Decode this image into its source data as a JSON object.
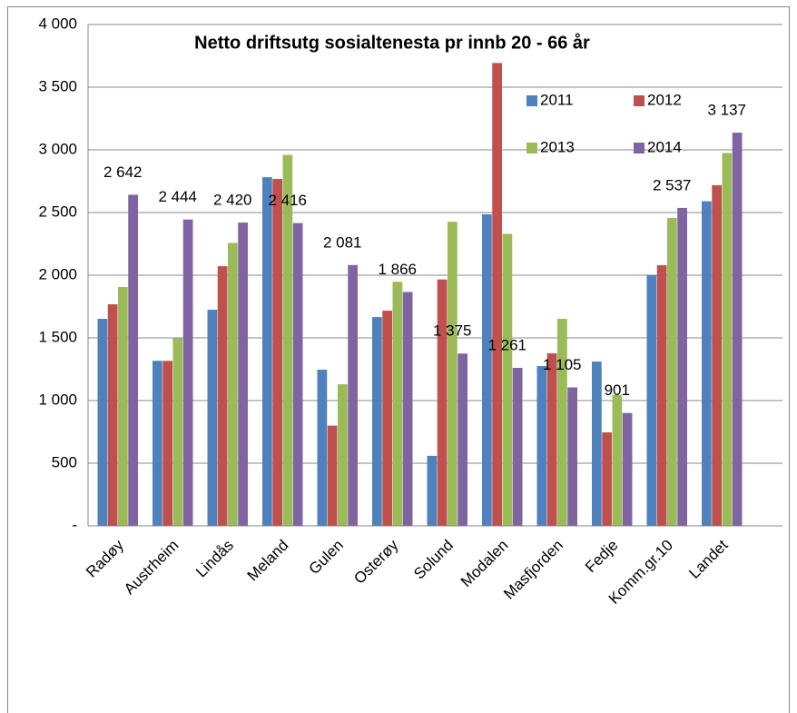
{
  "chart_data": {
    "type": "bar",
    "title": "Netto driftsutg sosialtenesta pr innb 20 - 66 år",
    "categories": [
      "Radøy",
      "Austrheim",
      "Lindås",
      "Meland",
      "Gulen",
      "Osterøy",
      "Solund",
      "Modalen",
      "Masfjorden",
      "Fedje",
      "Komm.gr.10",
      "Landet"
    ],
    "series": [
      {
        "name": "2011",
        "color": "#4f81bd",
        "values": [
          1652,
          1317,
          1725,
          2782,
          1246,
          1666,
          559,
          2486,
          1275,
          1311,
          2000,
          2590
        ]
      },
      {
        "name": "2012",
        "color": "#c0504d",
        "values": [
          1768,
          1317,
          2072,
          2768,
          800,
          1717,
          1966,
          3693,
          1377,
          746,
          2080,
          2718
        ]
      },
      {
        "name": "2013",
        "color": "#9bbb59",
        "values": [
          1906,
          1496,
          2258,
          2960,
          1130,
          1948,
          2427,
          2330,
          1652,
          1043,
          2457,
          2975
        ]
      },
      {
        "name": "2014",
        "color": "#8064a2",
        "values": [
          2642,
          2444,
          2420,
          2416,
          2081,
          1866,
          1375,
          1261,
          1105,
          901,
          2537,
          3137
        ],
        "value_labels": [
          "2 642",
          "2 444",
          "2 420",
          "2 416",
          "2 081",
          "1 866",
          "1 375",
          "1 261",
          "1 105",
          "901",
          "2 537",
          "3 137"
        ]
      }
    ],
    "ylim": [
      0,
      4000
    ],
    "yticks": [
      {
        "value": 0,
        "label": "-"
      },
      500,
      {
        "value": 1000,
        "label": "1 000"
      },
      {
        "value": 1500,
        "label": "1 500"
      },
      {
        "value": 2000,
        "label": "2 000"
      },
      {
        "value": 2500,
        "label": "2 500"
      },
      {
        "value": 3000,
        "label": "3 000"
      },
      {
        "value": 3500,
        "label": "3 500"
      },
      {
        "value": 4000,
        "label": "4 000"
      }
    ],
    "grid": true
  }
}
